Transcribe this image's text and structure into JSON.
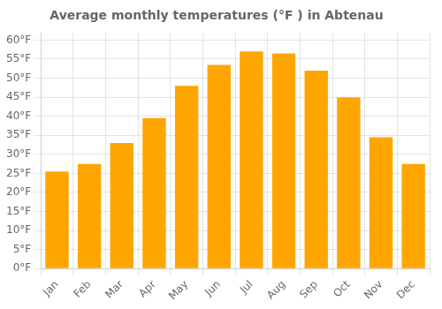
{
  "chart_data": {
    "type": "bar",
    "title": "Average monthly temperatures (°F ) in Abtenau",
    "categories": [
      "Jan",
      "Feb",
      "Mar",
      "Apr",
      "May",
      "Jun",
      "Jul",
      "Aug",
      "Sep",
      "Oct",
      "Nov",
      "Dec"
    ],
    "values": [
      25.5,
      27.5,
      33.0,
      39.5,
      48.0,
      53.5,
      57.0,
      56.5,
      52.0,
      45.0,
      34.5,
      27.5
    ],
    "color": "#FFA500",
    "ylim": [
      0,
      62
    ],
    "yticks": [
      {
        "value": 0,
        "label": "0°F"
      },
      {
        "value": 5,
        "label": "5°F"
      },
      {
        "value": 10,
        "label": "10°F"
      },
      {
        "value": 15,
        "label": "15°F"
      },
      {
        "value": 20,
        "label": "20°F"
      },
      {
        "value": 25,
        "label": "25°F"
      },
      {
        "value": 30,
        "label": "30°F"
      },
      {
        "value": 35,
        "label": "35°F"
      },
      {
        "value": 40,
        "label": "40°F"
      },
      {
        "value": 45,
        "label": "45°F"
      },
      {
        "value": 50,
        "label": "50°F"
      },
      {
        "value": 55,
        "label": "55°F"
      },
      {
        "value": 60,
        "label": "60°F"
      }
    ],
    "grid": true
  }
}
